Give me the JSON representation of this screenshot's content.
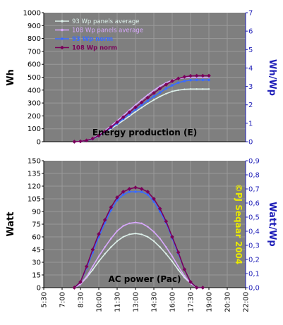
{
  "chart_data": [
    {
      "type": "line",
      "title": "Energy production (E)",
      "ylabel": "Wh",
      "ylabel_right": "Wh/Wp",
      "ylim": [
        0,
        1000
      ],
      "ylim_right": [
        0,
        7
      ],
      "yticks": [
        "0",
        "100",
        "200",
        "300",
        "400",
        "500",
        "600",
        "700",
        "800",
        "900",
        "1000"
      ],
      "yticks_right": [
        "0",
        "1",
        "2",
        "3",
        "4",
        "5",
        "6",
        "7"
      ],
      "xlim": [
        5.5,
        22.0
      ],
      "grid": true,
      "legend_position": "top-left",
      "series": [
        {
          "name": "93 Wp panels average",
          "axis": "left",
          "color": "#ddf0ea",
          "x": [
            8.0,
            8.5,
            9.0,
            9.5,
            10.0,
            10.5,
            11.0,
            11.5,
            12.0,
            12.5,
            13.0,
            13.5,
            14.0,
            14.5,
            15.0,
            15.5,
            16.0,
            16.5,
            17.0,
            17.5,
            18.0,
            18.5,
            19.0
          ],
          "values": [
            0,
            2,
            8,
            22,
            42,
            70,
            100,
            132,
            165,
            198,
            232,
            264,
            295,
            324,
            350,
            372,
            390,
            400,
            406,
            408,
            408,
            408,
            408
          ]
        },
        {
          "name": "108 Wp panels average",
          "axis": "left",
          "color": "#d9a8ff",
          "x": [
            8.0,
            8.5,
            9.0,
            9.5,
            10.0,
            10.5,
            11.0,
            11.5,
            12.0,
            12.5,
            13.0,
            13.5,
            14.0,
            14.5,
            15.0,
            15.5,
            16.0,
            16.5,
            17.0,
            17.5,
            18.0,
            18.5,
            19.0
          ],
          "values": [
            0,
            3,
            10,
            27,
            52,
            86,
            123,
            162,
            203,
            244,
            285,
            325,
            363,
            398,
            430,
            457,
            477,
            489,
            495,
            497,
            497,
            497,
            497
          ]
        },
        {
          "name": "93 Wp norm",
          "axis": "right",
          "color": "#3a6bff",
          "x": [
            8.0,
            8.5,
            9.0,
            9.5,
            10.0,
            10.5,
            11.0,
            11.5,
            12.0,
            12.5,
            13.0,
            13.5,
            14.0,
            14.5,
            15.0,
            15.5,
            16.0,
            16.5,
            17.0,
            17.5,
            18.0,
            18.5,
            19.0
          ],
          "values": [
            0,
            0.02,
            0.06,
            0.15,
            0.31,
            0.52,
            0.75,
            0.99,
            1.24,
            1.49,
            1.74,
            1.98,
            2.22,
            2.45,
            2.67,
            2.88,
            3.06,
            3.2,
            3.29,
            3.34,
            3.35,
            3.35,
            3.35
          ]
        },
        {
          "name": "108 Wp norm",
          "axis": "right",
          "color": "#7a005a",
          "x": [
            8.0,
            8.5,
            9.0,
            9.5,
            10.0,
            10.5,
            11.0,
            11.5,
            12.0,
            12.5,
            13.0,
            13.5,
            14.0,
            14.5,
            15.0,
            15.5,
            16.0,
            16.5,
            17.0,
            17.5,
            18.0,
            18.5,
            19.0
          ],
          "values": [
            0,
            0.02,
            0.07,
            0.17,
            0.33,
            0.55,
            0.8,
            1.06,
            1.33,
            1.6,
            1.87,
            2.13,
            2.39,
            2.64,
            2.88,
            3.1,
            3.29,
            3.43,
            3.52,
            3.57,
            3.58,
            3.58,
            3.58
          ]
        }
      ]
    },
    {
      "type": "line",
      "title": "AC power (Pac)",
      "ylabel": "Watt",
      "ylabel_right": "Watt/Wp",
      "ylim": [
        0,
        150
      ],
      "ylim_right": [
        0,
        0.9
      ],
      "yticks": [
        "0",
        "15",
        "30",
        "45",
        "60",
        "75",
        "90",
        "105",
        "120",
        "135",
        "150"
      ],
      "yticks_right": [
        "0,0",
        "0,1",
        "0,2",
        "0,3",
        "0,4",
        "0,5",
        "0,6",
        "0,7",
        "0,8",
        "0,9"
      ],
      "xlim": [
        5.5,
        22.0
      ],
      "xticks": [
        "5:30",
        "7:00",
        "8:30",
        "10:00",
        "11:30",
        "13:00",
        "14:30",
        "16:00",
        "17:30",
        "19:00",
        "20:30",
        "22:00"
      ],
      "grid": true,
      "annotation": "©PJ Seqaar 2004",
      "series": [
        {
          "name": "93 Wp panels average",
          "axis": "left",
          "color": "#ddf0ea",
          "x": [
            8.0,
            8.5,
            9.0,
            9.5,
            10.0,
            10.5,
            11.0,
            11.5,
            12.0,
            12.5,
            13.0,
            13.5,
            14.0,
            14.5,
            15.0,
            15.5,
            16.0,
            16.5,
            17.0,
            17.5,
            18.0,
            18.5
          ],
          "values": [
            0,
            4,
            12,
            21,
            31,
            40,
            48,
            55,
            60,
            63,
            64,
            63,
            60,
            55,
            48,
            40,
            31,
            21,
            12,
            5,
            0,
            0
          ]
        },
        {
          "name": "108 Wp panels average",
          "axis": "left",
          "color": "#d9a8ff",
          "x": [
            8.0,
            8.5,
            9.0,
            9.5,
            10.0,
            10.5,
            11.0,
            11.5,
            12.0,
            12.5,
            13.0,
            13.5,
            14.0,
            14.5,
            15.0,
            15.5,
            16.0,
            16.5,
            17.0,
            17.5,
            18.0,
            18.5
          ],
          "values": [
            0,
            4,
            13,
            25,
            37,
            48,
            58,
            67,
            73,
            76,
            77,
            76,
            72,
            66,
            58,
            48,
            37,
            25,
            14,
            5,
            0,
            0
          ]
        },
        {
          "name": "93 Wp norm",
          "axis": "right",
          "color": "#3a6bff",
          "x": [
            8.0,
            8.5,
            9.0,
            9.5,
            10.0,
            10.5,
            11.0,
            11.5,
            12.0,
            12.5,
            13.0,
            13.5,
            14.0,
            14.5,
            15.0,
            15.5,
            16.0,
            16.5,
            17.0,
            17.5,
            18.0,
            18.5
          ],
          "values": [
            0,
            0.04,
            0.14,
            0.25,
            0.36,
            0.46,
            0.55,
            0.62,
            0.66,
            0.68,
            0.68,
            0.68,
            0.66,
            0.61,
            0.54,
            0.46,
            0.35,
            0.24,
            0.13,
            0.04,
            0,
            0
          ]
        },
        {
          "name": "108 Wp norm",
          "axis": "right",
          "color": "#7a005a",
          "x": [
            8.0,
            8.5,
            9.0,
            9.5,
            10.0,
            10.5,
            11.0,
            11.5,
            12.0,
            12.5,
            13.0,
            13.5,
            14.0,
            14.5,
            15.0,
            15.5,
            16.0,
            16.5,
            17.0,
            17.5,
            18.0,
            18.5
          ],
          "values": [
            0,
            0.04,
            0.15,
            0.27,
            0.38,
            0.48,
            0.57,
            0.64,
            0.68,
            0.7,
            0.71,
            0.7,
            0.68,
            0.63,
            0.56,
            0.47,
            0.36,
            0.25,
            0.13,
            0.04,
            0,
            0
          ]
        }
      ]
    }
  ],
  "colors": {
    "plot_background": "#7f7f7f",
    "grid": "#9a9a9a",
    "right_axis": "#1f1fb8",
    "annotation": "#e8e800"
  }
}
